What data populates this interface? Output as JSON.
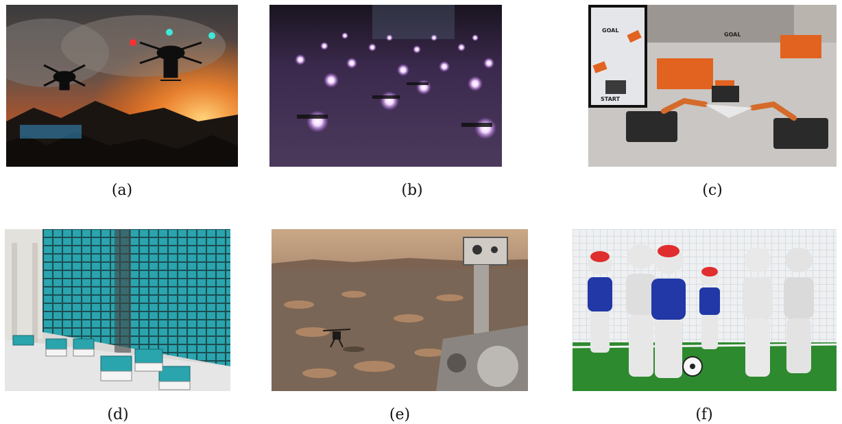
{
  "figure": {
    "panels": [
      {
        "label": "(a)"
      },
      {
        "label": "(b)"
      },
      {
        "label": "(c)",
        "inset_text": [
          "GOAL",
          "START"
        ],
        "scene_text": [
          "GOAL"
        ]
      },
      {
        "label": "(d)"
      },
      {
        "label": "(e)"
      },
      {
        "label": "(f)"
      }
    ]
  }
}
